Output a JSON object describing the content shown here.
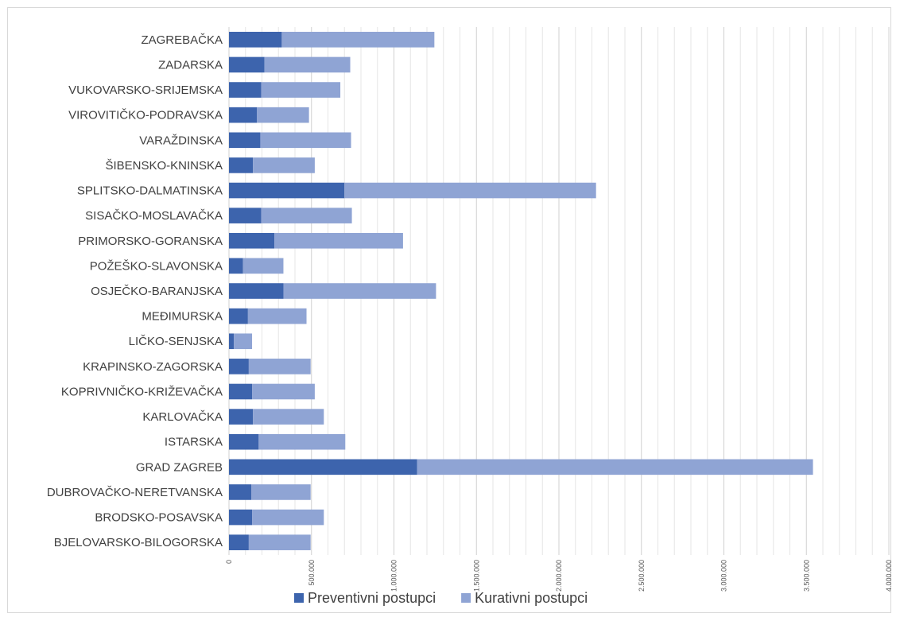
{
  "chart_data": {
    "type": "bar",
    "orientation": "horizontal",
    "stacked": true,
    "title": "",
    "xlabel": "",
    "ylabel": "",
    "xlim": [
      0,
      4000000
    ],
    "major_tick_step": 500000,
    "minor_tick_step": 100000,
    "grid": true,
    "legend_position": "bottom",
    "categories": [
      "ZAGREBAČKA",
      "ZADARSKA",
      "VUKOVARSKO-SRIJEMSKA",
      "VIROVITIČKO-PODRAVSKA",
      "VARAŽDINSKA",
      "ŠIBENSKO-KNINSKA",
      "SPLITSKO-DALMATINSKA",
      "SISAČKO-MOSLAVAČKA",
      "PRIMORSKO-GORANSKA",
      "POŽEŠKO-SLAVONSKA",
      "OSJEČKO-BARANJSKA",
      "MEĐIMURSKA",
      "LIČKO-SENJSKA",
      "KRAPINSKO-ZAGORSKA",
      "KOPRIVNIČKO-KRIŽEVAČKA",
      "KARLOVAČKA",
      "ISTARSKA",
      "GRAD ZAGREB",
      "DUBROVAČKO-NERETVANSKA",
      "BRODSKO-POSAVSKA",
      "BJELOVARSKO-BILOGORSKA"
    ],
    "series": [
      {
        "name": "Preventivni postupci",
        "color": "#3d64ad",
        "values": [
          320000,
          215000,
          195000,
          170000,
          190000,
          145000,
          700000,
          195000,
          275000,
          85000,
          330000,
          115000,
          30000,
          120000,
          140000,
          145000,
          180000,
          1140000,
          135000,
          140000,
          120000
        ]
      },
      {
        "name": "Kurativni postupci",
        "color": "#8fa4d4",
        "values": [
          925000,
          520000,
          480000,
          315000,
          550000,
          375000,
          1525000,
          550000,
          780000,
          245000,
          925000,
          355000,
          110000,
          375000,
          380000,
          430000,
          525000,
          2400000,
          360000,
          435000,
          375000
        ]
      }
    ],
    "tick_labels": [
      "0",
      "500.000",
      "1.000.000",
      "1.500.000",
      "2.000.000",
      "2.500.000",
      "3.000.000",
      "3.500.000",
      "4.000.000"
    ]
  }
}
